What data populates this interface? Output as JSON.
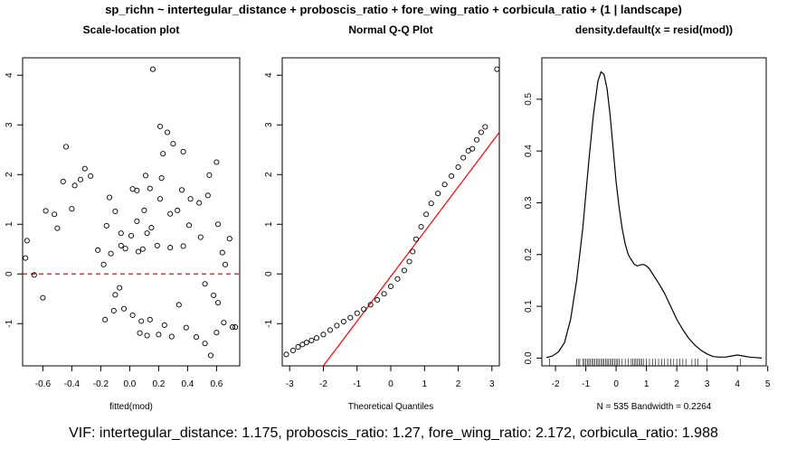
{
  "figure": {
    "suptitle": "sp_richn ~ intertegular_distance + proboscis_ratio + fore_wing_ratio + corbicula_ratio + (1 | landscape)",
    "footer": "VIF: intertegular_distance: 1.175, proboscis_ratio: 1.27, fore_wing_ratio: 2.172, corbicula_ratio: 1.988"
  },
  "chart_data": [
    {
      "type": "scatter",
      "title": "Scale-location plot",
      "xlabel": "fitted(mod)",
      "ylabel": "",
      "xlim": [
        -0.74,
        0.76
      ],
      "ylim": [
        -1.85,
        4.35
      ],
      "xticks": [
        -0.6,
        -0.4,
        -0.2,
        0.0,
        0.2,
        0.4,
        0.6
      ],
      "xtick_labels": [
        "-0.6",
        "-0.4",
        "-0.2",
        "0.0",
        "0.2",
        "0.4",
        "0.6"
      ],
      "yticks": [
        -1,
        0,
        1,
        2,
        3,
        4
      ],
      "ytick_labels": [
        "-1",
        "0",
        "1",
        "2",
        "3",
        "4"
      ],
      "reference_line": {
        "y": 0,
        "color": "#ff0000",
        "style": "dashed"
      },
      "points": [
        [
          0.16,
          4.12
        ],
        [
          0.21,
          2.97
        ],
        [
          0.26,
          2.85
        ],
        [
          0.3,
          2.62
        ],
        [
          0.6,
          2.25
        ],
        [
          0.23,
          2.42
        ],
        [
          0.37,
          2.46
        ],
        [
          -0.44,
          2.56
        ],
        [
          -0.31,
          2.12
        ],
        [
          -0.27,
          1.97
        ],
        [
          -0.34,
          1.9
        ],
        [
          0.55,
          1.99
        ],
        [
          0.11,
          1.98
        ],
        [
          0.22,
          1.93
        ],
        [
          -0.38,
          1.78
        ],
        [
          -0.46,
          1.86
        ],
        [
          -0.14,
          1.54
        ],
        [
          0.02,
          1.71
        ],
        [
          0.05,
          1.68
        ],
        [
          0.14,
          1.72
        ],
        [
          0.21,
          1.51
        ],
        [
          0.36,
          1.69
        ],
        [
          0.42,
          1.51
        ],
        [
          0.48,
          1.43
        ],
        [
          -0.58,
          1.27
        ],
        [
          -0.52,
          1.2
        ],
        [
          -0.4,
          1.31
        ],
        [
          0.54,
          1.58
        ],
        [
          -0.1,
          1.26
        ],
        [
          0.1,
          1.28
        ],
        [
          0.28,
          1.21
        ],
        [
          0.33,
          1.28
        ],
        [
          0.61,
          1.0
        ],
        [
          -0.16,
          0.97
        ],
        [
          0.05,
          1.06
        ],
        [
          0.15,
          0.93
        ],
        [
          0.41,
          0.98
        ],
        [
          -0.06,
          0.82
        ],
        [
          0.01,
          0.77
        ],
        [
          0.12,
          0.82
        ],
        [
          -0.5,
          0.92
        ],
        [
          0.19,
          0.57
        ],
        [
          0.28,
          0.53
        ],
        [
          0.64,
          0.43
        ],
        [
          0.69,
          0.71
        ],
        [
          -0.71,
          0.67
        ],
        [
          -0.72,
          0.32
        ],
        [
          -0.06,
          0.57
        ],
        [
          -0.13,
          0.41
        ],
        [
          -0.03,
          0.51
        ],
        [
          0.09,
          0.5
        ],
        [
          0.37,
          0.56
        ],
        [
          0.49,
          0.74
        ],
        [
          -0.22,
          0.48
        ],
        [
          -0.18,
          0.19
        ],
        [
          0.06,
          0.45
        ],
        [
          0.66,
          0.19
        ],
        [
          -0.66,
          -0.02
        ],
        [
          -0.6,
          -0.48
        ],
        [
          -0.04,
          -0.7
        ],
        [
          -0.07,
          -0.28
        ],
        [
          -0.1,
          -0.42
        ],
        [
          0.02,
          -0.83
        ],
        [
          0.08,
          -0.95
        ],
        [
          0.14,
          -0.92
        ],
        [
          0.24,
          -1.03
        ],
        [
          0.39,
          -1.08
        ],
        [
          0.46,
          -1.27
        ],
        [
          0.52,
          -1.4
        ],
        [
          0.56,
          -1.64
        ],
        [
          0.6,
          -1.18
        ],
        [
          0.65,
          -0.98
        ],
        [
          0.71,
          -1.07
        ],
        [
          0.73,
          -1.07
        ],
        [
          0.2,
          -1.22
        ],
        [
          0.29,
          -1.26
        ],
        [
          0.12,
          -1.24
        ],
        [
          0.07,
          -1.19
        ],
        [
          -0.17,
          -0.92
        ],
        [
          -0.11,
          -0.74
        ],
        [
          0.61,
          -0.58
        ],
        [
          0.58,
          -0.43
        ],
        [
          0.52,
          -0.2
        ],
        [
          0.34,
          -0.62
        ]
      ]
    },
    {
      "type": "scatter",
      "title": "Normal Q-Q Plot",
      "xlabel": "Theoretical Quantiles",
      "ylabel": "",
      "xlim": [
        -3.22,
        3.22
      ],
      "ylim": [
        -1.85,
        4.35
      ],
      "xticks": [
        -3,
        -2,
        -1,
        0,
        1,
        2,
        3
      ],
      "xtick_labels": [
        "-3",
        "-2",
        "-1",
        "0",
        "1",
        "2",
        "3"
      ],
      "yticks": [
        -1,
        0,
        1,
        2,
        3,
        4
      ],
      "ytick_labels": [
        "-1",
        "0",
        "1",
        "2",
        "3",
        "4"
      ],
      "n_points": 535,
      "reference_line": {
        "points": [
          [
            -2.0,
            -1.85
          ],
          [
            3.22,
            2.85
          ]
        ],
        "color": "#ff0000",
        "style": "solid"
      },
      "points": [
        [
          -3.1,
          -1.62
        ],
        [
          -2.9,
          -1.54
        ],
        [
          -2.75,
          -1.47
        ],
        [
          -2.62,
          -1.42
        ],
        [
          -2.5,
          -1.38
        ],
        [
          -2.35,
          -1.34
        ],
        [
          -2.2,
          -1.29
        ],
        [
          -2.0,
          -1.22
        ],
        [
          -1.8,
          -1.13
        ],
        [
          -1.6,
          -1.04
        ],
        [
          -1.4,
          -0.96
        ],
        [
          -1.2,
          -0.88
        ],
        [
          -1.0,
          -0.79
        ],
        [
          -0.8,
          -0.71
        ],
        [
          -0.6,
          -0.62
        ],
        [
          -0.4,
          -0.52
        ],
        [
          -0.2,
          -0.4
        ],
        [
          0.0,
          -0.25
        ],
        [
          0.2,
          -0.1
        ],
        [
          0.4,
          0.07
        ],
        [
          0.55,
          0.25
        ],
        [
          0.65,
          0.45
        ],
        [
          0.75,
          0.7
        ],
        [
          0.9,
          0.95
        ],
        [
          1.05,
          1.2
        ],
        [
          1.2,
          1.42
        ],
        [
          1.4,
          1.62
        ],
        [
          1.6,
          1.8
        ],
        [
          1.8,
          1.97
        ],
        [
          2.0,
          2.15
        ],
        [
          2.15,
          2.34
        ],
        [
          2.3,
          2.48
        ],
        [
          2.42,
          2.52
        ],
        [
          2.55,
          2.7
        ],
        [
          2.68,
          2.85
        ],
        [
          2.8,
          2.96
        ],
        [
          3.15,
          4.12
        ]
      ]
    },
    {
      "type": "line",
      "title": "density.default(x = resid(mod))",
      "xlabel": "N = 535   Bandwidth = 0.2264",
      "ylabel": "",
      "xlim": [
        -2.45,
        4.95
      ],
      "ylim": [
        -0.015,
        0.58
      ],
      "xticks": [
        -2,
        -1,
        0,
        1,
        2,
        3,
        4,
        5
      ],
      "xtick_labels": [
        "-2",
        "-1",
        "0",
        "1",
        "2",
        "3",
        "4",
        "5"
      ],
      "yticks": [
        0.0,
        0.1,
        0.2,
        0.3,
        0.4,
        0.5
      ],
      "ytick_labels": [
        "0.0",
        "0.1",
        "0.2",
        "0.3",
        "0.4",
        "0.5"
      ],
      "x": [
        -2.3,
        -2.1,
        -1.9,
        -1.7,
        -1.5,
        -1.3,
        -1.1,
        -0.9,
        -0.75,
        -0.6,
        -0.5,
        -0.4,
        -0.3,
        -0.2,
        -0.1,
        0.0,
        0.1,
        0.2,
        0.3,
        0.4,
        0.5,
        0.6,
        0.7,
        0.8,
        0.9,
        1.0,
        1.1,
        1.2,
        1.4,
        1.6,
        1.8,
        2.0,
        2.2,
        2.4,
        2.6,
        2.8,
        3.0,
        3.2,
        3.4,
        3.6,
        3.8,
        4.0,
        4.2,
        4.4,
        4.6,
        4.8
      ],
      "y": [
        0.001,
        0.004,
        0.012,
        0.03,
        0.075,
        0.15,
        0.25,
        0.38,
        0.47,
        0.535,
        0.553,
        0.548,
        0.52,
        0.47,
        0.405,
        0.34,
        0.29,
        0.25,
        0.22,
        0.2,
        0.19,
        0.181,
        0.178,
        0.18,
        0.181,
        0.178,
        0.172,
        0.163,
        0.145,
        0.125,
        0.1,
        0.075,
        0.055,
        0.038,
        0.025,
        0.015,
        0.008,
        0.003,
        0.002,
        0.002,
        0.004,
        0.006,
        0.004,
        0.002,
        0.001,
        0.0
      ],
      "rug": [
        -2.2,
        -1.3,
        -1.25,
        -1.2,
        -1.1,
        -1.05,
        -1.0,
        -0.95,
        -0.9,
        -0.85,
        -0.8,
        -0.75,
        -0.7,
        -0.65,
        -0.6,
        -0.55,
        -0.5,
        -0.45,
        -0.4,
        -0.35,
        -0.3,
        -0.25,
        -0.2,
        -0.15,
        -0.1,
        -0.05,
        0.0,
        0.05,
        0.1,
        0.2,
        0.3,
        0.4,
        0.5,
        0.55,
        0.6,
        0.65,
        0.7,
        0.75,
        0.8,
        0.85,
        0.9,
        1.0,
        1.1,
        1.2,
        1.3,
        1.4,
        1.5,
        1.6,
        1.7,
        1.8,
        1.9,
        2.0,
        2.1,
        2.2,
        2.3,
        2.5,
        2.6,
        2.7,
        3.0,
        4.1
      ]
    }
  ]
}
